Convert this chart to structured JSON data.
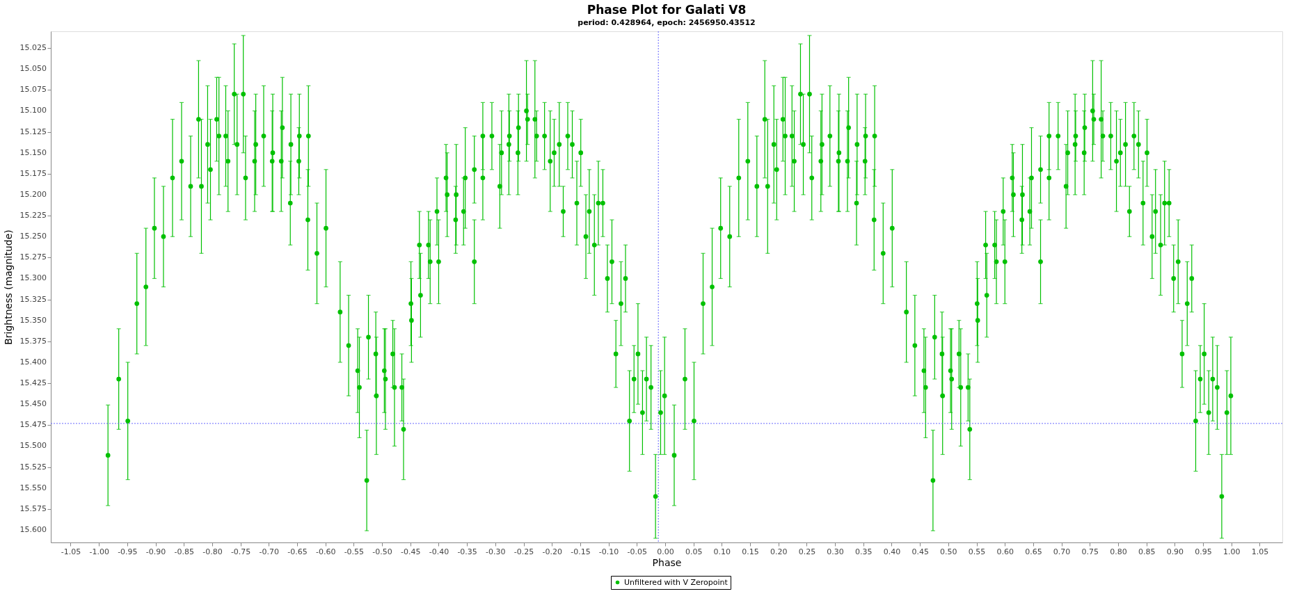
{
  "chart_data": {
    "type": "scatter",
    "title": "Phase Plot for Galati V8",
    "subtitle": "period: 0.428964, epoch: 2456950.43512",
    "xlabel": "Phase",
    "ylabel": "Brightness (magnitude)",
    "xlim": [
      -1.085,
      1.09
    ],
    "ylim": [
      15.615,
      15.005
    ],
    "xticks": [
      {
        "value": -1.05,
        "label": "-1.05"
      },
      {
        "value": -1.0,
        "label": "-1.00"
      },
      {
        "value": -0.95,
        "label": "-0.95"
      },
      {
        "value": -0.9,
        "label": "-0.90"
      },
      {
        "value": -0.85,
        "label": "-0.85"
      },
      {
        "value": -0.8,
        "label": "-0.80"
      },
      {
        "value": -0.75,
        "label": "-0.75"
      },
      {
        "value": -0.7,
        "label": "-0.70"
      },
      {
        "value": -0.65,
        "label": "-0.65"
      },
      {
        "value": -0.6,
        "label": "-0.60"
      },
      {
        "value": -0.55,
        "label": "-0.55"
      },
      {
        "value": -0.5,
        "label": "-0.50"
      },
      {
        "value": -0.45,
        "label": "-0.45"
      },
      {
        "value": -0.4,
        "label": "-0.40"
      },
      {
        "value": -0.35,
        "label": "-0.35"
      },
      {
        "value": -0.3,
        "label": "-0.30"
      },
      {
        "value": -0.25,
        "label": "-0.25"
      },
      {
        "value": -0.2,
        "label": "-0.20"
      },
      {
        "value": -0.15,
        "label": "-0.15"
      },
      {
        "value": -0.1,
        "label": "-0.10"
      },
      {
        "value": -0.05,
        "label": "-0.05"
      },
      {
        "value": 0,
        "label": "0.00"
      },
      {
        "value": 0.05,
        "label": "0.05"
      },
      {
        "value": 0.1,
        "label": "0.10"
      },
      {
        "value": 0.15,
        "label": "0.15"
      },
      {
        "value": 0.2,
        "label": "0.20"
      },
      {
        "value": 0.25,
        "label": "0.25"
      },
      {
        "value": 0.3,
        "label": "0.30"
      },
      {
        "value": 0.35,
        "label": "0.35"
      },
      {
        "value": 0.4,
        "label": "0.40"
      },
      {
        "value": 0.45,
        "label": "0.45"
      },
      {
        "value": 0.5,
        "label": "0.50"
      },
      {
        "value": 0.55,
        "label": "0.55"
      },
      {
        "value": 0.6,
        "label": "0.60"
      },
      {
        "value": 0.65,
        "label": "0.65"
      },
      {
        "value": 0.7,
        "label": "0.70"
      },
      {
        "value": 0.75,
        "label": "0.75"
      },
      {
        "value": 0.8,
        "label": "0.80"
      },
      {
        "value": 0.85,
        "label": "0.85"
      },
      {
        "value": 0.9,
        "label": "0.90"
      },
      {
        "value": 0.95,
        "label": "0.95"
      },
      {
        "value": 1.0,
        "label": "1.00"
      },
      {
        "value": 1.05,
        "label": "1.05"
      }
    ],
    "yticks": [
      {
        "value": 15.025,
        "label": "15.025"
      },
      {
        "value": 15.05,
        "label": "15.050"
      },
      {
        "value": 15.075,
        "label": "15.075"
      },
      {
        "value": 15.1,
        "label": "15.100"
      },
      {
        "value": 15.125,
        "label": "15.125"
      },
      {
        "value": 15.15,
        "label": "15.150"
      },
      {
        "value": 15.175,
        "label": "15.175"
      },
      {
        "value": 15.2,
        "label": "15.200"
      },
      {
        "value": 15.225,
        "label": "15.225"
      },
      {
        "value": 15.25,
        "label": "15.250"
      },
      {
        "value": 15.275,
        "label": "15.275"
      },
      {
        "value": 15.3,
        "label": "15.300"
      },
      {
        "value": 15.325,
        "label": "15.325"
      },
      {
        "value": 15.35,
        "label": "15.350"
      },
      {
        "value": 15.375,
        "label": "15.375"
      },
      {
        "value": 15.4,
        "label": "15.400"
      },
      {
        "value": 15.425,
        "label": "15.425"
      },
      {
        "value": 15.45,
        "label": "15.450"
      },
      {
        "value": 15.475,
        "label": "15.475"
      },
      {
        "value": 15.5,
        "label": "15.500"
      },
      {
        "value": 15.525,
        "label": "15.525"
      },
      {
        "value": 15.55,
        "label": "15.550"
      },
      {
        "value": 15.575,
        "label": "15.575"
      },
      {
        "value": 15.6,
        "label": "15.600"
      }
    ],
    "grid": false,
    "legend": "bottom",
    "marker": "circle",
    "ref_lines": [
      {
        "axis": "x",
        "value": -0.012,
        "color": "#6666ff",
        "line_style": "dotted"
      },
      {
        "axis": "y",
        "value": 15.473,
        "color": "#6666ff",
        "line_style": "dotted"
      }
    ],
    "series": [
      {
        "name": "Unfiltered with V Zeropoint",
        "color": "#00c000",
        "x": [
          -0.984,
          -0.965,
          -0.949,
          -0.933,
          -0.917,
          -0.902,
          -0.886,
          -0.87,
          -0.854,
          -0.838,
          -0.824,
          -0.819,
          -0.808,
          -0.803,
          -0.792,
          -0.788,
          -0.776,
          -0.772,
          -0.761,
          -0.756,
          -0.745,
          -0.741,
          -0.725,
          -0.723,
          -0.709,
          -0.694,
          -0.693,
          -0.678,
          -0.676,
          -0.662,
          -0.661,
          -0.647,
          -0.646,
          -0.631,
          -0.63,
          -0.615,
          -0.599,
          -0.574,
          -0.559,
          -0.543,
          -0.54,
          -0.527,
          -0.524,
          -0.511,
          -0.51,
          -0.496,
          -0.494,
          -0.481,
          -0.478,
          -0.465,
          -0.462,
          -0.449,
          -0.448,
          -0.434,
          -0.432,
          -0.418,
          -0.415,
          -0.403,
          -0.4,
          -0.387,
          -0.385,
          -0.37,
          -0.369,
          -0.356,
          -0.353,
          -0.337,
          -0.337,
          -0.322,
          -0.322,
          -0.306,
          -0.292,
          -0.289,
          -0.276,
          -0.275,
          -0.26,
          -0.259,
          -0.245,
          -0.243,
          -0.23,
          -0.227,
          -0.213,
          -0.203,
          -0.196,
          -0.187,
          -0.18,
          -0.172,
          -0.164,
          -0.156,
          -0.149,
          -0.14,
          -0.134,
          -0.125,
          -0.118,
          -0.11,
          -0.102,
          -0.094,
          -0.087,
          -0.078,
          -0.07,
          -0.063,
          -0.055,
          -0.048,
          -0.04,
          -0.033,
          -0.025,
          -0.017,
          -0.008,
          -0.001,
          0.016,
          0.035,
          0.051,
          0.067,
          0.083,
          0.098,
          0.114,
          0.13,
          0.146,
          0.162,
          0.176,
          0.181,
          0.192,
          0.197,
          0.208,
          0.212,
          0.224,
          0.228,
          0.239,
          0.244,
          0.255,
          0.259,
          0.275,
          0.277,
          0.291,
          0.306,
          0.307,
          0.322,
          0.324,
          0.338,
          0.339,
          0.353,
          0.354,
          0.369,
          0.37,
          0.385,
          0.401,
          0.426,
          0.441,
          0.457,
          0.46,
          0.473,
          0.476,
          0.489,
          0.49,
          0.504,
          0.506,
          0.519,
          0.522,
          0.535,
          0.538,
          0.551,
          0.552,
          0.566,
          0.568,
          0.582,
          0.585,
          0.597,
          0.6,
          0.613,
          0.615,
          0.63,
          0.631,
          0.644,
          0.647,
          0.663,
          0.663,
          0.678,
          0.678,
          0.694,
          0.708,
          0.711,
          0.724,
          0.725,
          0.74,
          0.741,
          0.755,
          0.757,
          0.77,
          0.773,
          0.787,
          0.797,
          0.804,
          0.813,
          0.82,
          0.828,
          0.836,
          0.844,
          0.851,
          0.86,
          0.866,
          0.875,
          0.882,
          0.89,
          0.898,
          0.906,
          0.913,
          0.922,
          0.93,
          0.937,
          0.945,
          0.952,
          0.96,
          0.967,
          0.975,
          0.983,
          0.992,
          0.999
        ],
        "values": [
          15.511,
          15.42,
          15.47,
          15.33,
          15.31,
          15.24,
          15.25,
          15.18,
          15.16,
          15.19,
          15.11,
          15.19,
          15.14,
          15.17,
          15.11,
          15.13,
          15.13,
          15.16,
          15.08,
          15.14,
          15.08,
          15.18,
          15.16,
          15.14,
          15.13,
          15.16,
          15.15,
          15.16,
          15.12,
          15.21,
          15.14,
          15.16,
          15.13,
          15.23,
          15.13,
          15.27,
          15.24,
          15.34,
          15.38,
          15.41,
          15.43,
          15.541,
          15.37,
          15.39,
          15.44,
          15.41,
          15.42,
          15.39,
          15.43,
          15.43,
          15.48,
          15.33,
          15.35,
          15.26,
          15.32,
          15.26,
          15.28,
          15.22,
          15.28,
          15.18,
          15.2,
          15.23,
          15.2,
          15.22,
          15.18,
          15.17,
          15.28,
          15.13,
          15.18,
          15.13,
          15.19,
          15.15,
          15.14,
          15.13,
          15.15,
          15.12,
          15.1,
          15.11,
          15.11,
          15.13,
          15.13,
          15.16,
          15.15,
          15.14,
          15.22,
          15.13,
          15.14,
          15.21,
          15.15,
          15.25,
          15.22,
          15.26,
          15.21,
          15.21,
          15.3,
          15.28,
          15.39,
          15.33,
          15.3,
          15.47,
          15.42,
          15.39,
          15.46,
          15.42,
          15.43,
          15.56,
          15.46,
          15.44,
          15.511,
          15.42,
          15.47,
          15.33,
          15.31,
          15.24,
          15.25,
          15.18,
          15.16,
          15.19,
          15.11,
          15.19,
          15.14,
          15.17,
          15.11,
          15.13,
          15.13,
          15.16,
          15.08,
          15.14,
          15.08,
          15.18,
          15.16,
          15.14,
          15.13,
          15.16,
          15.15,
          15.16,
          15.12,
          15.21,
          15.14,
          15.16,
          15.13,
          15.23,
          15.13,
          15.27,
          15.24,
          15.34,
          15.38,
          15.41,
          15.43,
          15.541,
          15.37,
          15.39,
          15.44,
          15.41,
          15.42,
          15.39,
          15.43,
          15.43,
          15.48,
          15.33,
          15.35,
          15.26,
          15.32,
          15.26,
          15.28,
          15.22,
          15.28,
          15.18,
          15.2,
          15.23,
          15.2,
          15.22,
          15.18,
          15.17,
          15.28,
          15.13,
          15.18,
          15.13,
          15.19,
          15.15,
          15.14,
          15.13,
          15.15,
          15.12,
          15.1,
          15.11,
          15.11,
          15.13,
          15.13,
          15.16,
          15.15,
          15.14,
          15.22,
          15.13,
          15.14,
          15.21,
          15.15,
          15.25,
          15.22,
          15.26,
          15.21,
          15.21,
          15.3,
          15.28,
          15.39,
          15.33,
          15.3,
          15.47,
          15.42,
          15.39,
          15.46,
          15.42,
          15.43,
          15.56,
          15.46,
          15.44
        ],
        "errors": [
          0.06,
          0.06,
          0.07,
          0.06,
          0.07,
          0.06,
          0.06,
          0.07,
          0.07,
          0.06,
          0.07,
          0.08,
          0.07,
          0.06,
          0.05,
          0.07,
          0.06,
          0.06,
          0.06,
          0.06,
          0.07,
          0.05,
          0.06,
          0.06,
          0.06,
          0.06,
          0.07,
          0.06,
          0.06,
          0.05,
          0.06,
          0.04,
          0.05,
          0.06,
          0.06,
          0.06,
          0.07,
          0.06,
          0.06,
          0.05,
          0.06,
          0.06,
          0.05,
          0.05,
          0.07,
          0.05,
          0.06,
          0.04,
          0.07,
          0.04,
          0.06,
          0.05,
          0.05,
          0.04,
          0.05,
          0.04,
          0.05,
          0.04,
          0.05,
          0.04,
          0.05,
          0.04,
          0.06,
          0.04,
          0.06,
          0.04,
          0.05,
          0.04,
          0.05,
          0.04,
          0.05,
          0.05,
          0.06,
          0.03,
          0.05,
          0.04,
          0.06,
          0.03,
          0.07,
          0.03,
          0.04,
          0.06,
          0.04,
          0.05,
          0.03,
          0.04,
          0.04,
          0.05,
          0.04,
          0.05,
          0.05,
          0.06,
          0.05,
          0.04,
          0.04,
          0.05,
          0.04,
          0.05,
          0.04,
          0.06,
          0.04,
          0.06,
          0.05,
          0.05,
          0.05,
          0.05,
          0.05,
          0.07,
          0.06,
          0.06,
          0.07,
          0.06,
          0.07,
          0.06,
          0.06,
          0.07,
          0.07,
          0.06,
          0.07,
          0.08,
          0.07,
          0.06,
          0.05,
          0.07,
          0.06,
          0.06,
          0.06,
          0.06,
          0.07,
          0.05,
          0.06,
          0.06,
          0.06,
          0.06,
          0.07,
          0.06,
          0.06,
          0.05,
          0.06,
          0.04,
          0.05,
          0.06,
          0.06,
          0.06,
          0.07,
          0.06,
          0.06,
          0.05,
          0.06,
          0.06,
          0.05,
          0.05,
          0.07,
          0.05,
          0.06,
          0.04,
          0.07,
          0.04,
          0.06,
          0.05,
          0.05,
          0.04,
          0.05,
          0.04,
          0.05,
          0.04,
          0.05,
          0.04,
          0.05,
          0.04,
          0.06,
          0.04,
          0.06,
          0.04,
          0.05,
          0.04,
          0.05,
          0.04,
          0.05,
          0.05,
          0.06,
          0.03,
          0.05,
          0.04,
          0.06,
          0.03,
          0.07,
          0.03,
          0.04,
          0.06,
          0.04,
          0.05,
          0.03,
          0.04,
          0.04,
          0.05,
          0.04,
          0.05,
          0.05,
          0.06,
          0.05,
          0.04,
          0.04,
          0.05,
          0.04,
          0.05,
          0.04,
          0.06,
          0.04,
          0.06,
          0.05,
          0.05,
          0.05,
          0.05,
          0.05,
          0.07
        ]
      }
    ]
  }
}
